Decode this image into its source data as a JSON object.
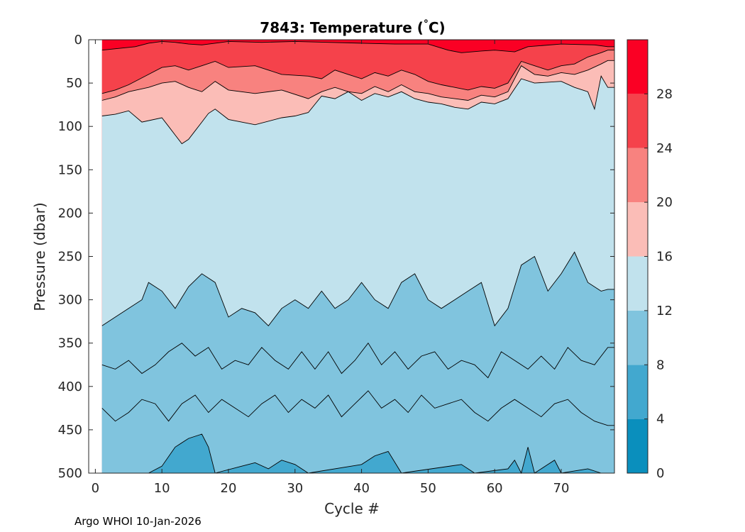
{
  "chart_data": {
    "type": "filled-contour",
    "title_main": "7843:  Temperature (",
    "title_degree": "°",
    "title_unit": "C)",
    "xlabel": "Cycle #",
    "ylabel": "Pressure (dbar)",
    "xlim": [
      -1,
      78
    ],
    "ylim": [
      0,
      500
    ],
    "y_reversed": true,
    "x_ticks": [
      0,
      10,
      20,
      30,
      40,
      50,
      60,
      70
    ],
    "y_ticks": [
      0,
      50,
      100,
      150,
      200,
      250,
      300,
      350,
      400,
      450,
      500
    ],
    "colorbar": {
      "range": [
        0,
        32
      ],
      "ticks": [
        0,
        4,
        8,
        12,
        16,
        20,
        24,
        28
      ],
      "bands": [
        {
          "from": 0,
          "to": 4,
          "color": "#0a8fbd"
        },
        {
          "from": 4,
          "to": 8,
          "color": "#42a8cf"
        },
        {
          "from": 8,
          "to": 12,
          "color": "#80c4de"
        },
        {
          "from": 12,
          "to": 16,
          "color": "#c1e2ed"
        },
        {
          "from": 16,
          "to": 20,
          "color": "#fbbdb7"
        },
        {
          "from": 20,
          "to": 24,
          "color": "#f8827f"
        },
        {
          "from": 24,
          "to": 28,
          "color": "#f5424b"
        },
        {
          "from": 28,
          "to": 32,
          "color": "#fa0024"
        }
      ]
    },
    "isotherms": [
      {
        "level": 26,
        "depths": [
          [
            1,
            12
          ],
          [
            6,
            8
          ],
          [
            8,
            4
          ],
          [
            10,
            2
          ],
          [
            12,
            3
          ],
          [
            14,
            5
          ],
          [
            16,
            6
          ],
          [
            18,
            4
          ],
          [
            20,
            2
          ],
          [
            25,
            3
          ],
          [
            30,
            2
          ],
          [
            35,
            3
          ],
          [
            40,
            4
          ],
          [
            45,
            5
          ],
          [
            50,
            5
          ],
          [
            53,
            12
          ],
          [
            55,
            15
          ],
          [
            58,
            13
          ],
          [
            60,
            12
          ],
          [
            63,
            14
          ],
          [
            65,
            8
          ],
          [
            70,
            5
          ],
          [
            75,
            6
          ],
          [
            77,
            8
          ]
        ]
      },
      {
        "level": 24,
        "depths": [
          [
            1,
            62
          ],
          [
            3,
            58
          ],
          [
            5,
            52
          ],
          [
            8,
            40
          ],
          [
            10,
            32
          ],
          [
            12,
            30
          ],
          [
            14,
            35
          ],
          [
            16,
            30
          ],
          [
            18,
            25
          ],
          [
            20,
            32
          ],
          [
            24,
            30
          ],
          [
            28,
            40
          ],
          [
            32,
            42
          ],
          [
            34,
            45
          ],
          [
            36,
            35
          ],
          [
            38,
            40
          ],
          [
            40,
            45
          ],
          [
            42,
            38
          ],
          [
            44,
            42
          ],
          [
            46,
            35
          ],
          [
            48,
            40
          ],
          [
            50,
            48
          ],
          [
            52,
            52
          ],
          [
            54,
            55
          ],
          [
            56,
            58
          ],
          [
            58,
            54
          ],
          [
            60,
            56
          ],
          [
            62,
            50
          ],
          [
            64,
            25
          ],
          [
            66,
            30
          ],
          [
            68,
            35
          ],
          [
            70,
            30
          ],
          [
            72,
            28
          ],
          [
            74,
            20
          ],
          [
            76,
            15
          ],
          [
            77,
            12
          ]
        ]
      },
      {
        "level": 20,
        "depths": [
          [
            1,
            70
          ],
          [
            3,
            66
          ],
          [
            5,
            60
          ],
          [
            8,
            55
          ],
          [
            10,
            50
          ],
          [
            12,
            48
          ],
          [
            14,
            55
          ],
          [
            16,
            60
          ],
          [
            18,
            48
          ],
          [
            20,
            58
          ],
          [
            24,
            62
          ],
          [
            28,
            58
          ],
          [
            32,
            68
          ],
          [
            34,
            60
          ],
          [
            36,
            55
          ],
          [
            38,
            60
          ],
          [
            40,
            62
          ],
          [
            42,
            54
          ],
          [
            44,
            60
          ],
          [
            46,
            52
          ],
          [
            48,
            60
          ],
          [
            50,
            62
          ],
          [
            52,
            66
          ],
          [
            54,
            68
          ],
          [
            56,
            70
          ],
          [
            58,
            64
          ],
          [
            60,
            66
          ],
          [
            62,
            60
          ],
          [
            64,
            30
          ],
          [
            66,
            40
          ],
          [
            68,
            42
          ],
          [
            70,
            38
          ],
          [
            72,
            40
          ],
          [
            74,
            35
          ],
          [
            76,
            28
          ],
          [
            77,
            24
          ]
        ]
      },
      {
        "level": 16,
        "depths": [
          [
            1,
            88
          ],
          [
            3,
            86
          ],
          [
            5,
            82
          ],
          [
            7,
            95
          ],
          [
            10,
            90
          ],
          [
            11,
            100
          ],
          [
            12,
            110
          ],
          [
            13,
            120
          ],
          [
            14,
            115
          ],
          [
            15,
            105
          ],
          [
            16,
            95
          ],
          [
            17,
            85
          ],
          [
            18,
            80
          ],
          [
            20,
            92
          ],
          [
            24,
            98
          ],
          [
            28,
            90
          ],
          [
            30,
            88
          ],
          [
            32,
            84
          ],
          [
            34,
            65
          ],
          [
            36,
            68
          ],
          [
            38,
            60
          ],
          [
            40,
            70
          ],
          [
            42,
            62
          ],
          [
            44,
            66
          ],
          [
            46,
            60
          ],
          [
            48,
            68
          ],
          [
            50,
            72
          ],
          [
            52,
            74
          ],
          [
            54,
            78
          ],
          [
            56,
            80
          ],
          [
            58,
            72
          ],
          [
            60,
            74
          ],
          [
            62,
            68
          ],
          [
            64,
            45
          ],
          [
            66,
            50
          ],
          [
            70,
            48
          ],
          [
            72,
            55
          ],
          [
            74,
            60
          ],
          [
            75,
            80
          ],
          [
            76,
            42
          ],
          [
            77,
            55
          ]
        ]
      },
      {
        "level": 12,
        "depths": [
          [
            1,
            330
          ],
          [
            3,
            320
          ],
          [
            5,
            310
          ],
          [
            7,
            300
          ],
          [
            8,
            280
          ],
          [
            10,
            290
          ],
          [
            12,
            310
          ],
          [
            14,
            285
          ],
          [
            16,
            270
          ],
          [
            18,
            280
          ],
          [
            20,
            320
          ],
          [
            22,
            310
          ],
          [
            24,
            315
          ],
          [
            26,
            330
          ],
          [
            28,
            310
          ],
          [
            30,
            300
          ],
          [
            32,
            310
          ],
          [
            34,
            290
          ],
          [
            36,
            310
          ],
          [
            38,
            300
          ],
          [
            40,
            280
          ],
          [
            42,
            300
          ],
          [
            44,
            310
          ],
          [
            46,
            280
          ],
          [
            48,
            270
          ],
          [
            50,
            300
          ],
          [
            52,
            310
          ],
          [
            54,
            300
          ],
          [
            56,
            290
          ],
          [
            58,
            280
          ],
          [
            60,
            330
          ],
          [
            62,
            310
          ],
          [
            64,
            260
          ],
          [
            66,
            250
          ],
          [
            68,
            290
          ],
          [
            70,
            270
          ],
          [
            72,
            245
          ],
          [
            74,
            280
          ],
          [
            76,
            290
          ],
          [
            77,
            288
          ]
        ]
      },
      {
        "level": 10,
        "depths": [
          [
            1,
            375
          ],
          [
            3,
            380
          ],
          [
            5,
            370
          ],
          [
            7,
            385
          ],
          [
            9,
            375
          ],
          [
            11,
            360
          ],
          [
            13,
            350
          ],
          [
            15,
            365
          ],
          [
            17,
            355
          ],
          [
            19,
            380
          ],
          [
            21,
            370
          ],
          [
            23,
            375
          ],
          [
            25,
            355
          ],
          [
            27,
            370
          ],
          [
            29,
            380
          ],
          [
            31,
            360
          ],
          [
            33,
            380
          ],
          [
            35,
            360
          ],
          [
            37,
            385
          ],
          [
            39,
            370
          ],
          [
            41,
            350
          ],
          [
            43,
            375
          ],
          [
            45,
            360
          ],
          [
            47,
            380
          ],
          [
            49,
            365
          ],
          [
            51,
            360
          ],
          [
            53,
            380
          ],
          [
            55,
            370
          ],
          [
            57,
            375
          ],
          [
            59,
            390
          ],
          [
            61,
            360
          ],
          [
            63,
            370
          ],
          [
            65,
            380
          ],
          [
            67,
            365
          ],
          [
            69,
            380
          ],
          [
            71,
            355
          ],
          [
            73,
            370
          ],
          [
            75,
            375
          ],
          [
            77,
            355
          ]
        ]
      },
      {
        "level": 9,
        "depths": [
          [
            1,
            425
          ],
          [
            3,
            440
          ],
          [
            5,
            430
          ],
          [
            7,
            415
          ],
          [
            9,
            420
          ],
          [
            11,
            440
          ],
          [
            13,
            420
          ],
          [
            15,
            410
          ],
          [
            17,
            430
          ],
          [
            19,
            415
          ],
          [
            21,
            425
          ],
          [
            23,
            435
          ],
          [
            25,
            420
          ],
          [
            27,
            410
          ],
          [
            29,
            430
          ],
          [
            31,
            415
          ],
          [
            33,
            425
          ],
          [
            35,
            410
          ],
          [
            37,
            435
          ],
          [
            39,
            420
          ],
          [
            41,
            405
          ],
          [
            43,
            425
          ],
          [
            45,
            415
          ],
          [
            47,
            430
          ],
          [
            49,
            410
          ],
          [
            51,
            425
          ],
          [
            53,
            420
          ],
          [
            55,
            415
          ],
          [
            57,
            430
          ],
          [
            59,
            440
          ],
          [
            61,
            425
          ],
          [
            63,
            415
          ],
          [
            65,
            425
          ],
          [
            67,
            435
          ],
          [
            69,
            420
          ],
          [
            71,
            415
          ],
          [
            73,
            430
          ],
          [
            75,
            440
          ],
          [
            77,
            445
          ]
        ]
      },
      {
        "level": 8,
        "depths": [
          [
            8,
            500
          ],
          [
            10,
            492
          ],
          [
            12,
            470
          ],
          [
            14,
            460
          ],
          [
            16,
            455
          ],
          [
            17,
            470
          ],
          [
            18,
            500
          ],
          [
            22,
            492
          ],
          [
            24,
            488
          ],
          [
            26,
            495
          ],
          [
            28,
            485
          ],
          [
            30,
            490
          ],
          [
            32,
            500
          ],
          [
            40,
            490
          ],
          [
            42,
            480
          ],
          [
            44,
            475
          ],
          [
            46,
            500
          ],
          [
            55,
            490
          ],
          [
            57,
            500
          ],
          [
            62,
            495
          ],
          [
            63,
            485
          ],
          [
            64,
            500
          ],
          [
            65,
            470
          ],
          [
            66,
            500
          ],
          [
            68,
            490
          ],
          [
            69,
            485
          ],
          [
            70,
            500
          ],
          [
            74,
            495
          ],
          [
            76,
            500
          ]
        ]
      }
    ]
  },
  "footer": {
    "credit": "Argo WHOI 10-Jan-2026"
  }
}
